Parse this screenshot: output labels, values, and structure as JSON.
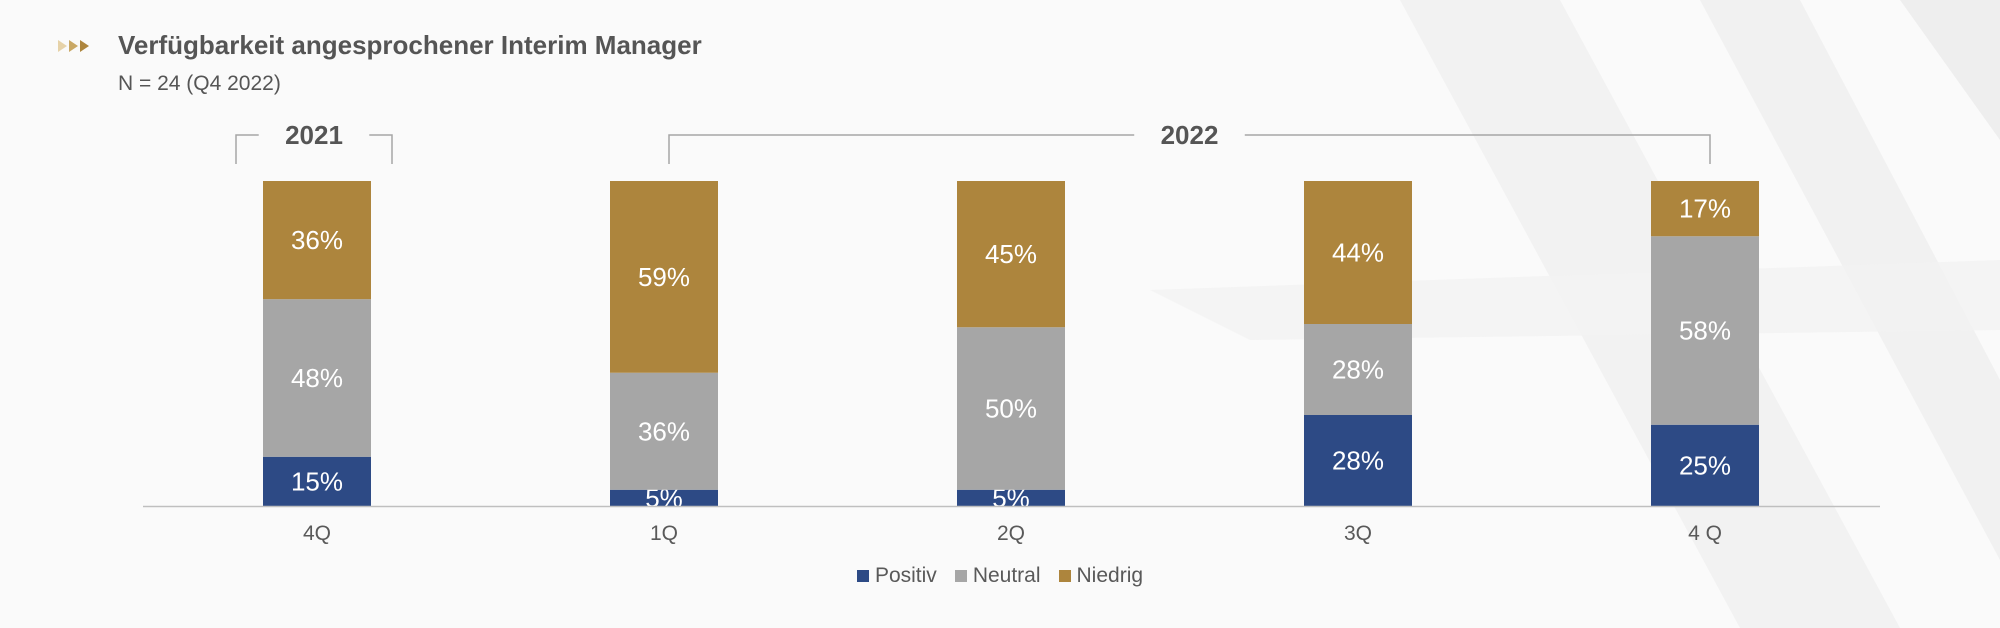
{
  "header": {
    "icon": "triple-arrow-icon",
    "title": "Verfügbarkeit angesprochener Interim Manager",
    "subtitle": "N = 24 (Q4 2022)"
  },
  "chart_data": {
    "type": "bar",
    "stacked": true,
    "categories": [
      "4Q",
      "1Q",
      "2Q",
      "3Q",
      "4 Q"
    ],
    "groups": [
      {
        "label": "2021",
        "categories": [
          "4Q"
        ]
      },
      {
        "label": "2022",
        "categories": [
          "1Q",
          "2Q",
          "3Q",
          "4 Q"
        ]
      }
    ],
    "series": [
      {
        "name": "Positiv",
        "color": "#2d4a85",
        "values": [
          15,
          5,
          5,
          28,
          25
        ]
      },
      {
        "name": "Neutral",
        "color": "#a6a6a6",
        "values": [
          48,
          36,
          50,
          28,
          58
        ]
      },
      {
        "name": "Niedrig",
        "color": "#ad853d",
        "values": [
          36,
          59,
          45,
          44,
          17
        ]
      }
    ],
    "value_suffix": "%",
    "ylim": [
      0,
      100
    ],
    "grid": false,
    "legend_position": "bottom"
  }
}
